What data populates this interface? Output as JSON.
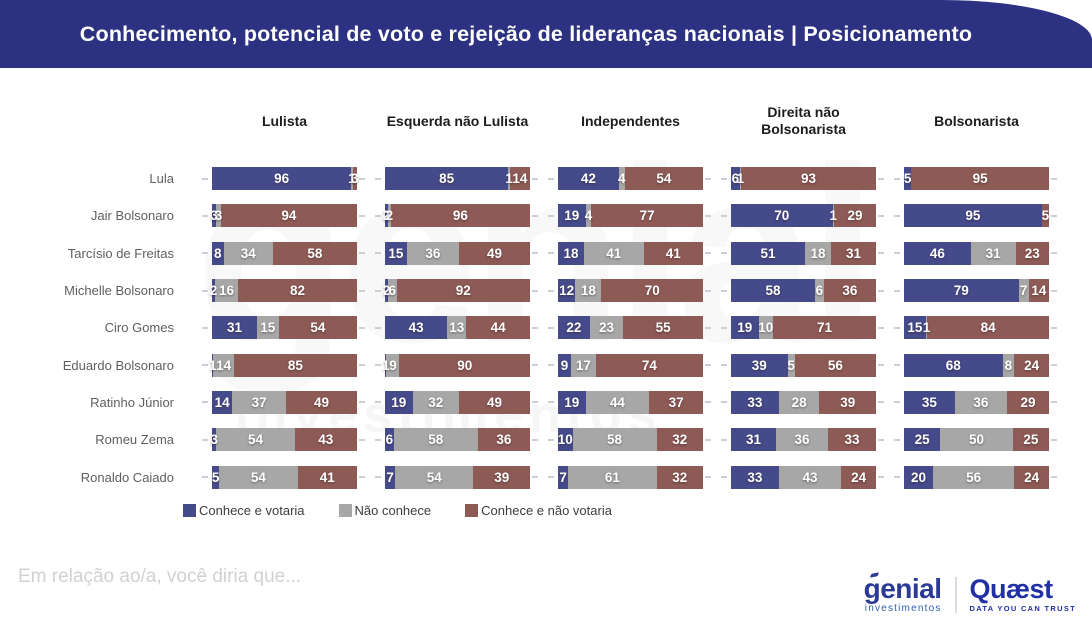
{
  "header": {
    "title": "Conhecimento, potencial de voto e rejeição de lideranças nacionais | Posicionamento",
    "bg_color": "#2d3181"
  },
  "chart_data": {
    "type": "bar",
    "subtype": "horizontal_stacked_small_multiples",
    "unit": "%",
    "xlim": [
      0,
      100
    ],
    "grid": false,
    "legend_position": "bottom",
    "groups": [
      "Lulista",
      "Esquerda não Lulista",
      "Independentes",
      "Direita não Bolsonarista",
      "Bolsonarista"
    ],
    "series_legend": [
      {
        "key": "conhece-e-votaria",
        "name": "Conhece e votaria",
        "color": "#454a8a"
      },
      {
        "key": "nao-conhece",
        "name": "Não conhece",
        "color": "#a7a7a7"
      },
      {
        "key": "conhece-e-nao-votaria",
        "name": "Conhece e não votaria",
        "color": "#8e5a56"
      }
    ],
    "rows": [
      {
        "label": "Lula",
        "values": [
          [
            96,
            1,
            3
          ],
          [
            85,
            1,
            14
          ],
          [
            42,
            4,
            54
          ],
          [
            6,
            1,
            93
          ],
          [
            5,
            0,
            95
          ]
        ]
      },
      {
        "label": "Jair Bolsonaro",
        "values": [
          [
            3,
            3,
            94
          ],
          [
            2,
            2,
            96
          ],
          [
            19,
            4,
            77
          ],
          [
            70,
            1,
            29
          ],
          [
            95,
            0,
            5
          ]
        ]
      },
      {
        "label": "Tarcísio de Freitas",
        "values": [
          [
            8,
            34,
            58
          ],
          [
            15,
            36,
            49
          ],
          [
            18,
            41,
            41
          ],
          [
            51,
            18,
            31
          ],
          [
            46,
            31,
            23
          ]
        ]
      },
      {
        "label": "Michelle Bolsonaro",
        "values": [
          [
            2,
            16,
            82
          ],
          [
            2,
            6,
            92
          ],
          [
            12,
            18,
            70
          ],
          [
            58,
            6,
            36
          ],
          [
            79,
            7,
            14
          ]
        ]
      },
      {
        "label": "Ciro Gomes",
        "values": [
          [
            31,
            15,
            54
          ],
          [
            43,
            13,
            44
          ],
          [
            22,
            23,
            55
          ],
          [
            19,
            10,
            71
          ],
          [
            15,
            1,
            84
          ]
        ]
      },
      {
        "label": "Eduardo Bolsonaro",
        "values": [
          [
            1,
            14,
            85
          ],
          [
            1,
            9,
            90
          ],
          [
            9,
            17,
            74
          ],
          [
            39,
            5,
            56
          ],
          [
            68,
            8,
            24
          ]
        ]
      },
      {
        "label": "Ratinho Júnior",
        "values": [
          [
            14,
            37,
            49
          ],
          [
            19,
            32,
            49
          ],
          [
            19,
            44,
            37
          ],
          [
            33,
            28,
            39
          ],
          [
            35,
            36,
            29
          ]
        ]
      },
      {
        "label": "Romeu Zema",
        "values": [
          [
            3,
            54,
            43
          ],
          [
            6,
            58,
            36
          ],
          [
            10,
            58,
            32
          ],
          [
            31,
            36,
            33
          ],
          [
            25,
            50,
            25
          ]
        ]
      },
      {
        "label": "Ronaldo Caiado",
        "values": [
          [
            5,
            54,
            41
          ],
          [
            7,
            54,
            39
          ],
          [
            7,
            61,
            32
          ],
          [
            33,
            43,
            24
          ],
          [
            20,
            56,
            24
          ]
        ]
      }
    ]
  },
  "footer": {
    "question": "Em relação ao/a, você diria que...",
    "logos": {
      "genial": {
        "name": "genial",
        "sub": "investimentos"
      },
      "quaest": {
        "name": "Quæst",
        "tagline": "DATA YOU CAN TRUST"
      }
    }
  },
  "watermark": {
    "text": "genial",
    "subtext": "investimentos"
  }
}
